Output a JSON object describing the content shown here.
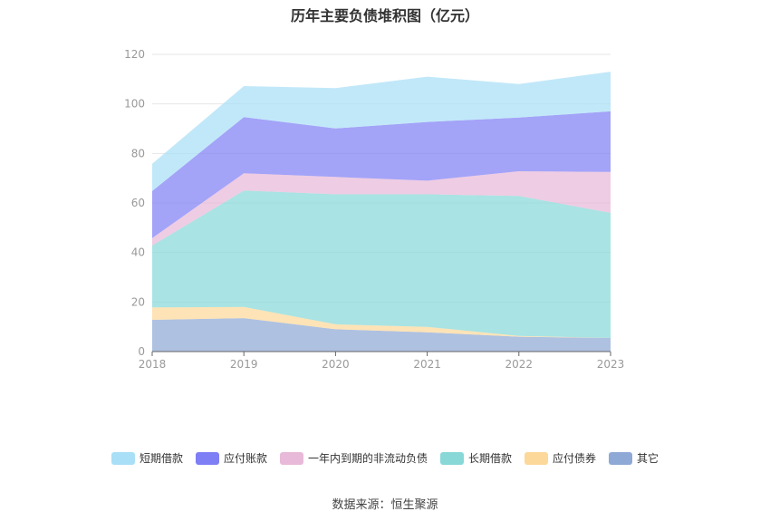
{
  "title": "历年主要负债堆积图（亿元）",
  "source": "数据来源：恒生聚源",
  "chart_data": {
    "type": "area",
    "stacked": true,
    "x": [
      "2018",
      "2019",
      "2020",
      "2021",
      "2022",
      "2023"
    ],
    "ylim": [
      0,
      120
    ],
    "yticks": [
      0,
      20,
      40,
      60,
      80,
      100,
      120
    ],
    "grid": true,
    "legend_position": "bottom",
    "series": [
      {
        "name": "其它",
        "color": "#8fa9d6",
        "values": [
          12.8,
          13.5,
          9.0,
          7.8,
          6.0,
          5.5
        ]
      },
      {
        "name": "应付债券",
        "color": "#fcd89a",
        "values": [
          5.0,
          4.5,
          2.0,
          2.2,
          0.3,
          0.0
        ]
      },
      {
        "name": "长期借款",
        "color": "#88d8d8",
        "values": [
          25.0,
          47.0,
          52.5,
          53.5,
          56.5,
          50.5
        ]
      },
      {
        "name": "一年内到期的非流动负债",
        "color": "#e8b9d8",
        "values": [
          3.0,
          7.0,
          7.0,
          5.5,
          10.0,
          16.5
        ]
      },
      {
        "name": "应付账款",
        "color": "#7f7ff5",
        "values": [
          19.0,
          22.7,
          19.6,
          23.7,
          21.7,
          24.5
        ]
      },
      {
        "name": "短期借款",
        "color": "#a9dff7",
        "values": [
          11.0,
          12.5,
          16.3,
          18.3,
          13.5,
          16.0
        ]
      }
    ],
    "legend_order": [
      "短期借款",
      "应付账款",
      "一年内到期的非流动负债",
      "长期借款",
      "应付债券",
      "其它"
    ]
  }
}
